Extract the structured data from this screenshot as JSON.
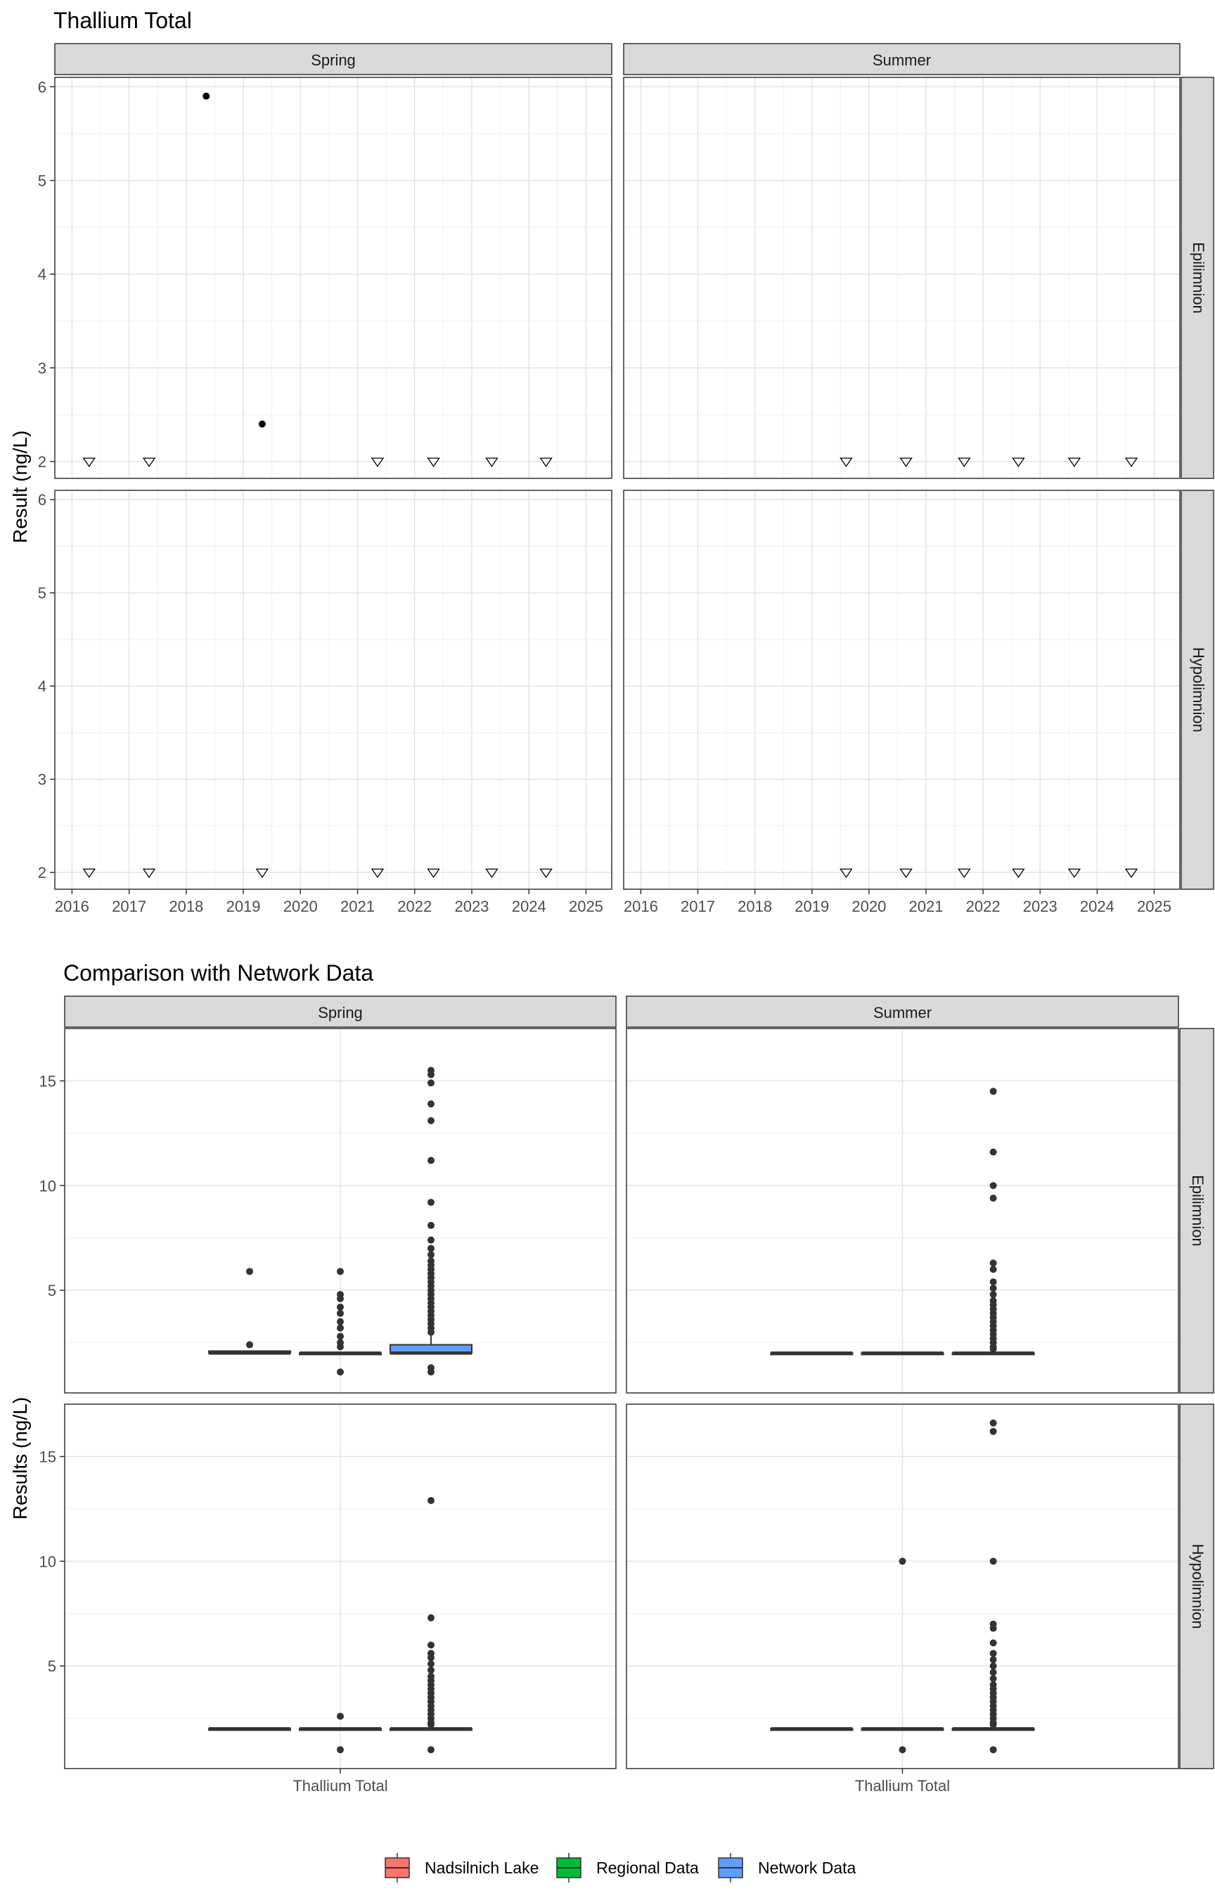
{
  "chart_data": [
    {
      "type": "scatter",
      "title": "Thallium Total",
      "ylabel": "Result (ng/L)",
      "xlabel": "",
      "xlim": [
        2015.7,
        2025.45
      ],
      "ylim": [
        1.82,
        6.1
      ],
      "xticks": [
        2016,
        2017,
        2018,
        2019,
        2020,
        2021,
        2022,
        2023,
        2024,
        2025
      ],
      "xtick_labels": [
        "2016",
        "2017",
        "2018",
        "2019",
        "2020",
        "2021",
        "2022",
        "2023",
        "2024",
        "2025"
      ],
      "yticks": [
        2,
        3,
        4,
        5,
        6
      ],
      "ytick_labels": [
        "2",
        "3",
        "4",
        "5",
        "6"
      ],
      "grid": true,
      "col_facets": [
        "Spring",
        "Summer"
      ],
      "row_facets": [
        "Epilimnion",
        "Hypolimnion"
      ],
      "panels": [
        {
          "season": "Spring",
          "layer": "Epilimnion",
          "detected": [
            {
              "x": 2018.35,
              "y": 5.9
            },
            {
              "x": 2019.33,
              "y": 2.4
            }
          ],
          "below_detection": [
            {
              "x": 2016.3,
              "y": 2
            },
            {
              "x": 2017.35,
              "y": 2
            },
            {
              "x": 2021.35,
              "y": 2
            },
            {
              "x": 2022.33,
              "y": 2
            },
            {
              "x": 2023.35,
              "y": 2
            },
            {
              "x": 2024.3,
              "y": 2
            }
          ]
        },
        {
          "season": "Summer",
          "layer": "Epilimnion",
          "detected": [],
          "below_detection": [
            {
              "x": 2019.6,
              "y": 2
            },
            {
              "x": 2020.65,
              "y": 2
            },
            {
              "x": 2021.67,
              "y": 2
            },
            {
              "x": 2022.62,
              "y": 2
            },
            {
              "x": 2023.6,
              "y": 2
            },
            {
              "x": 2024.6,
              "y": 2
            }
          ]
        },
        {
          "season": "Spring",
          "layer": "Hypolimnion",
          "detected": [],
          "below_detection": [
            {
              "x": 2016.3,
              "y": 2
            },
            {
              "x": 2017.35,
              "y": 2
            },
            {
              "x": 2019.33,
              "y": 2
            },
            {
              "x": 2021.35,
              "y": 2
            },
            {
              "x": 2022.33,
              "y": 2
            },
            {
              "x": 2023.35,
              "y": 2
            },
            {
              "x": 2024.3,
              "y": 2
            }
          ]
        },
        {
          "season": "Summer",
          "layer": "Hypolimnion",
          "detected": [],
          "below_detection": [
            {
              "x": 2019.6,
              "y": 2
            },
            {
              "x": 2020.65,
              "y": 2
            },
            {
              "x": 2021.67,
              "y": 2
            },
            {
              "x": 2022.62,
              "y": 2
            },
            {
              "x": 2023.6,
              "y": 2
            },
            {
              "x": 2024.6,
              "y": 2
            }
          ]
        }
      ]
    },
    {
      "type": "boxplot",
      "title": "Comparison with Network Data",
      "ylabel": "Results (ng/L)",
      "xlabel": "",
      "category": "Thallium Total",
      "ylim": [
        0.1,
        17.5
      ],
      "yticks": [
        5,
        10,
        15
      ],
      "ytick_labels": [
        "5",
        "10",
        "15"
      ],
      "grid": true,
      "col_facets": [
        "Spring",
        "Summer"
      ],
      "row_facets": [
        "Epilimnion",
        "Hypolimnion"
      ],
      "legend": {
        "position": "bottom",
        "entries": [
          {
            "name": "Nadsilnich Lake",
            "color": "#F8766D"
          },
          {
            "name": "Regional Data",
            "color": "#00BA38"
          },
          {
            "name": "Network Data",
            "color": "#619CFF"
          }
        ]
      },
      "panels": [
        {
          "season": "Spring",
          "layer": "Epilimnion",
          "boxes": [
            {
              "group": "Nadsilnich Lake",
              "q1": 2.0,
              "median": 2.0,
              "q3": 2.1,
              "whisker_low": 2.0,
              "whisker_high": 2.1,
              "outliers": [
                5.9,
                2.4
              ]
            },
            {
              "group": "Regional Data",
              "q1": 2.0,
              "median": 2.0,
              "q3": 2.0,
              "whisker_low": 2.0,
              "whisker_high": 2.0,
              "outliers": [
                5.9,
                4.8,
                4.6,
                4.2,
                3.9,
                3.5,
                3.2,
                2.8,
                2.5,
                2.3,
                1.1
              ]
            },
            {
              "group": "Network Data",
              "q1": 2.0,
              "median": 2.0,
              "q3": 2.4,
              "whisker_low": 2.0,
              "whisker_high": 2.9,
              "outliers": [
                15.5,
                15.3,
                14.9,
                13.9,
                13.1,
                11.2,
                9.2,
                8.1,
                7.4,
                7.0,
                6.7,
                6.4,
                6.2,
                6.0,
                5.8,
                5.6,
                5.4,
                5.2,
                5.0,
                4.8,
                4.6,
                4.4,
                4.2,
                4.0,
                3.8,
                3.6,
                3.4,
                3.2,
                3.0,
                1.3,
                1.1
              ]
            }
          ]
        },
        {
          "season": "Summer",
          "layer": "Epilimnion",
          "boxes": [
            {
              "group": "Nadsilnich Lake",
              "q1": 2.0,
              "median": 2.0,
              "q3": 2.0,
              "whisker_low": 2.0,
              "whisker_high": 2.0,
              "outliers": []
            },
            {
              "group": "Regional Data",
              "q1": 2.0,
              "median": 2.0,
              "q3": 2.0,
              "whisker_low": 2.0,
              "whisker_high": 2.0,
              "outliers": []
            },
            {
              "group": "Network Data",
              "q1": 2.0,
              "median": 2.0,
              "q3": 2.0,
              "whisker_low": 2.0,
              "whisker_high": 2.0,
              "outliers": [
                14.5,
                11.6,
                10.0,
                9.4,
                6.3,
                6.0,
                5.4,
                5.1,
                4.8,
                4.5,
                4.3,
                4.1,
                3.9,
                3.7,
                3.5,
                3.3,
                3.1,
                2.9,
                2.7,
                2.5,
                2.3,
                2.2
              ]
            }
          ]
        },
        {
          "season": "Spring",
          "layer": "Hypolimnion",
          "boxes": [
            {
              "group": "Nadsilnich Lake",
              "q1": 2.0,
              "median": 2.0,
              "q3": 2.0,
              "whisker_low": 2.0,
              "whisker_high": 2.0,
              "outliers": []
            },
            {
              "group": "Regional Data",
              "q1": 2.0,
              "median": 2.0,
              "q3": 2.0,
              "whisker_low": 2.0,
              "whisker_high": 2.0,
              "outliers": [
                2.6,
                1.0
              ]
            },
            {
              "group": "Network Data",
              "q1": 2.0,
              "median": 2.0,
              "q3": 2.0,
              "whisker_low": 2.0,
              "whisker_high": 2.0,
              "outliers": [
                12.9,
                7.3,
                6.0,
                5.6,
                5.4,
                5.1,
                4.8,
                4.5,
                4.3,
                4.1,
                3.9,
                3.7,
                3.5,
                3.3,
                3.1,
                2.9,
                2.7,
                2.5,
                2.3,
                2.2,
                1.0
              ]
            }
          ]
        },
        {
          "season": "Summer",
          "layer": "Hypolimnion",
          "boxes": [
            {
              "group": "Nadsilnich Lake",
              "q1": 2.0,
              "median": 2.0,
              "q3": 2.0,
              "whisker_low": 2.0,
              "whisker_high": 2.0,
              "outliers": []
            },
            {
              "group": "Regional Data",
              "q1": 2.0,
              "median": 2.0,
              "q3": 2.0,
              "whisker_low": 2.0,
              "whisker_high": 2.0,
              "outliers": [
                10.0,
                1.0
              ]
            },
            {
              "group": "Network Data",
              "q1": 2.0,
              "median": 2.0,
              "q3": 2.0,
              "whisker_low": 2.0,
              "whisker_high": 2.0,
              "outliers": [
                16.6,
                16.2,
                10.0,
                7.0,
                6.8,
                6.1,
                5.6,
                5.3,
                5.0,
                4.7,
                4.4,
                4.1,
                3.9,
                3.7,
                3.5,
                3.3,
                3.1,
                2.9,
                2.7,
                2.5,
                2.3,
                2.2,
                1.0
              ]
            }
          ]
        }
      ]
    }
  ]
}
